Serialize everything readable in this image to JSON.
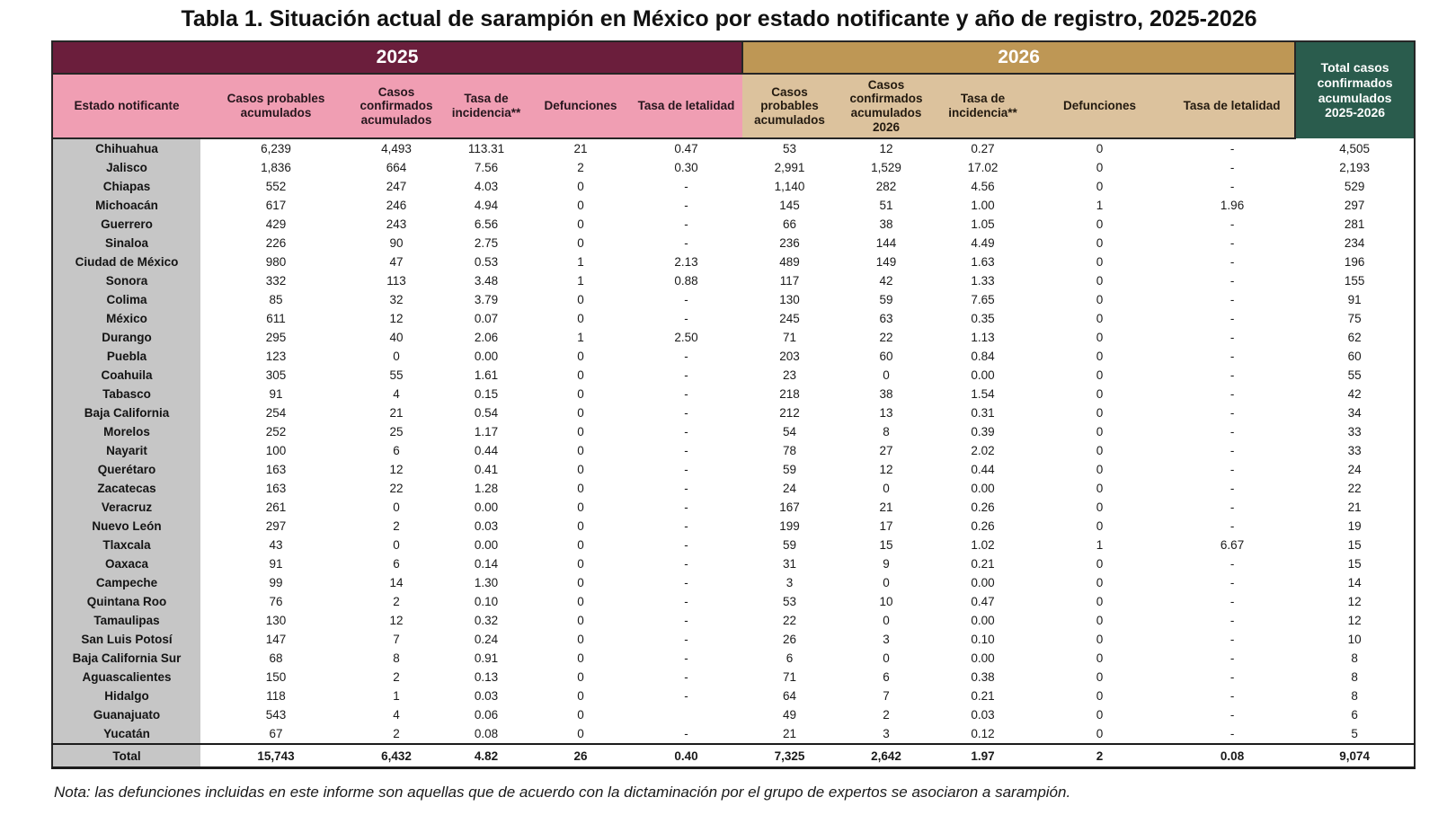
{
  "title": "Tabla 1. Situación actual de sarampión en México por estado notificante y año de registro, 2025-2026",
  "note": "Nota: las defunciones incluidas en este informe son aquellas que de acuerdo con la dictaminación por el grupo de expertos se asociaron a sarampión.",
  "colors": {
    "maroon_2025": "#6B1E3C",
    "pink_2025_subheader": "#F09EB3",
    "gold_2026": "#BE9755",
    "tan_2026_subheader": "#DCC29D",
    "green_total": "#2A5C4D",
    "gray_state_column": "#C6C6C6"
  },
  "table": {
    "year_2025_label": "2025",
    "year_2026_label": "2026",
    "total_header": "Total casos confirmados acumulados 2025-2026",
    "columns_2025": [
      "Estado notificante",
      "Casos probables acumulados",
      "Casos confirmados acumulados",
      "Tasa de incidencia**",
      "Defunciones",
      "Tasa de letalidad"
    ],
    "columns_2026": [
      "Casos probables acumulados",
      "Casos confirmados acumulados 2026",
      "Tasa de incidencia**",
      "Defunciones",
      "Tasa de letalidad"
    ],
    "rows": [
      [
        "Chihuahua",
        "6,239",
        "4,493",
        "113.31",
        "21",
        "0.47",
        "53",
        "12",
        "0.27",
        "0",
        "-",
        "4,505"
      ],
      [
        "Jalisco",
        "1,836",
        "664",
        "7.56",
        "2",
        "0.30",
        "2,991",
        "1,529",
        "17.02",
        "0",
        "-",
        "2,193"
      ],
      [
        "Chiapas",
        "552",
        "247",
        "4.03",
        "0",
        "-",
        "1,140",
        "282",
        "4.56",
        "0",
        "-",
        "529"
      ],
      [
        "Michoacán",
        "617",
        "246",
        "4.94",
        "0",
        "-",
        "145",
        "51",
        "1.00",
        "1",
        "1.96",
        "297"
      ],
      [
        "Guerrero",
        "429",
        "243",
        "6.56",
        "0",
        "-",
        "66",
        "38",
        "1.05",
        "0",
        "-",
        "281"
      ],
      [
        "Sinaloa",
        "226",
        "90",
        "2.75",
        "0",
        "-",
        "236",
        "144",
        "4.49",
        "0",
        "-",
        "234"
      ],
      [
        "Ciudad de México",
        "980",
        "47",
        "0.53",
        "1",
        "2.13",
        "489",
        "149",
        "1.63",
        "0",
        "-",
        "196"
      ],
      [
        "Sonora",
        "332",
        "113",
        "3.48",
        "1",
        "0.88",
        "117",
        "42",
        "1.33",
        "0",
        "-",
        "155"
      ],
      [
        "Colima",
        "85",
        "32",
        "3.79",
        "0",
        "-",
        "130",
        "59",
        "7.65",
        "0",
        "-",
        "91"
      ],
      [
        "México",
        "611",
        "12",
        "0.07",
        "0",
        "-",
        "245",
        "63",
        "0.35",
        "0",
        "-",
        "75"
      ],
      [
        "Durango",
        "295",
        "40",
        "2.06",
        "1",
        "2.50",
        "71",
        "22",
        "1.13",
        "0",
        "-",
        "62"
      ],
      [
        "Puebla",
        "123",
        "0",
        "0.00",
        "0",
        "-",
        "203",
        "60",
        "0.84",
        "0",
        "-",
        "60"
      ],
      [
        "Coahuila",
        "305",
        "55",
        "1.61",
        "0",
        "-",
        "23",
        "0",
        "0.00",
        "0",
        "-",
        "55"
      ],
      [
        "Tabasco",
        "91",
        "4",
        "0.15",
        "0",
        "-",
        "218",
        "38",
        "1.54",
        "0",
        "-",
        "42"
      ],
      [
        "Baja California",
        "254",
        "21",
        "0.54",
        "0",
        "-",
        "212",
        "13",
        "0.31",
        "0",
        "-",
        "34"
      ],
      [
        "Morelos",
        "252",
        "25",
        "1.17",
        "0",
        "-",
        "54",
        "8",
        "0.39",
        "0",
        "-",
        "33"
      ],
      [
        "Nayarit",
        "100",
        "6",
        "0.44",
        "0",
        "-",
        "78",
        "27",
        "2.02",
        "0",
        "-",
        "33"
      ],
      [
        "Querétaro",
        "163",
        "12",
        "0.41",
        "0",
        "-",
        "59",
        "12",
        "0.44",
        "0",
        "-",
        "24"
      ],
      [
        "Zacatecas",
        "163",
        "22",
        "1.28",
        "0",
        "-",
        "24",
        "0",
        "0.00",
        "0",
        "-",
        "22"
      ],
      [
        "Veracruz",
        "261",
        "0",
        "0.00",
        "0",
        "-",
        "167",
        "21",
        "0.26",
        "0",
        "-",
        "21"
      ],
      [
        "Nuevo León",
        "297",
        "2",
        "0.03",
        "0",
        "-",
        "199",
        "17",
        "0.26",
        "0",
        "-",
        "19"
      ],
      [
        "Tlaxcala",
        "43",
        "0",
        "0.00",
        "0",
        "-",
        "59",
        "15",
        "1.02",
        "1",
        "6.67",
        "15"
      ],
      [
        "Oaxaca",
        "91",
        "6",
        "0.14",
        "0",
        "-",
        "31",
        "9",
        "0.21",
        "0",
        "-",
        "15"
      ],
      [
        "Campeche",
        "99",
        "14",
        "1.30",
        "0",
        "-",
        "3",
        "0",
        "0.00",
        "0",
        "-",
        "14"
      ],
      [
        "Quintana Roo",
        "76",
        "2",
        "0.10",
        "0",
        "-",
        "53",
        "10",
        "0.47",
        "0",
        "-",
        "12"
      ],
      [
        "Tamaulipas",
        "130",
        "12",
        "0.32",
        "0",
        "-",
        "22",
        "0",
        "0.00",
        "0",
        "-",
        "12"
      ],
      [
        "San Luis Potosí",
        "147",
        "7",
        "0.24",
        "0",
        "-",
        "26",
        "3",
        "0.10",
        "0",
        "-",
        "10"
      ],
      [
        "Baja California Sur",
        "68",
        "8",
        "0.91",
        "0",
        "-",
        "6",
        "0",
        "0.00",
        "0",
        "-",
        "8"
      ],
      [
        "Aguascalientes",
        "150",
        "2",
        "0.13",
        "0",
        "-",
        "71",
        "6",
        "0.38",
        "0",
        "-",
        "8"
      ],
      [
        "Hidalgo",
        "118",
        "1",
        "0.03",
        "0",
        "-",
        "64",
        "7",
        "0.21",
        "0",
        "-",
        "8"
      ],
      [
        "Guanajuato",
        "543",
        "4",
        "0.06",
        "0",
        "",
        "49",
        "2",
        "0.03",
        "0",
        "-",
        "6"
      ],
      [
        "Yucatán",
        "67",
        "2",
        "0.08",
        "0",
        "-",
        "21",
        "3",
        "0.12",
        "0",
        "-",
        "5"
      ]
    ],
    "total_row": [
      "Total",
      "15,743",
      "6,432",
      "4.82",
      "26",
      "0.40",
      "7,325",
      "2,642",
      "1.97",
      "2",
      "0.08",
      "9,074"
    ]
  }
}
